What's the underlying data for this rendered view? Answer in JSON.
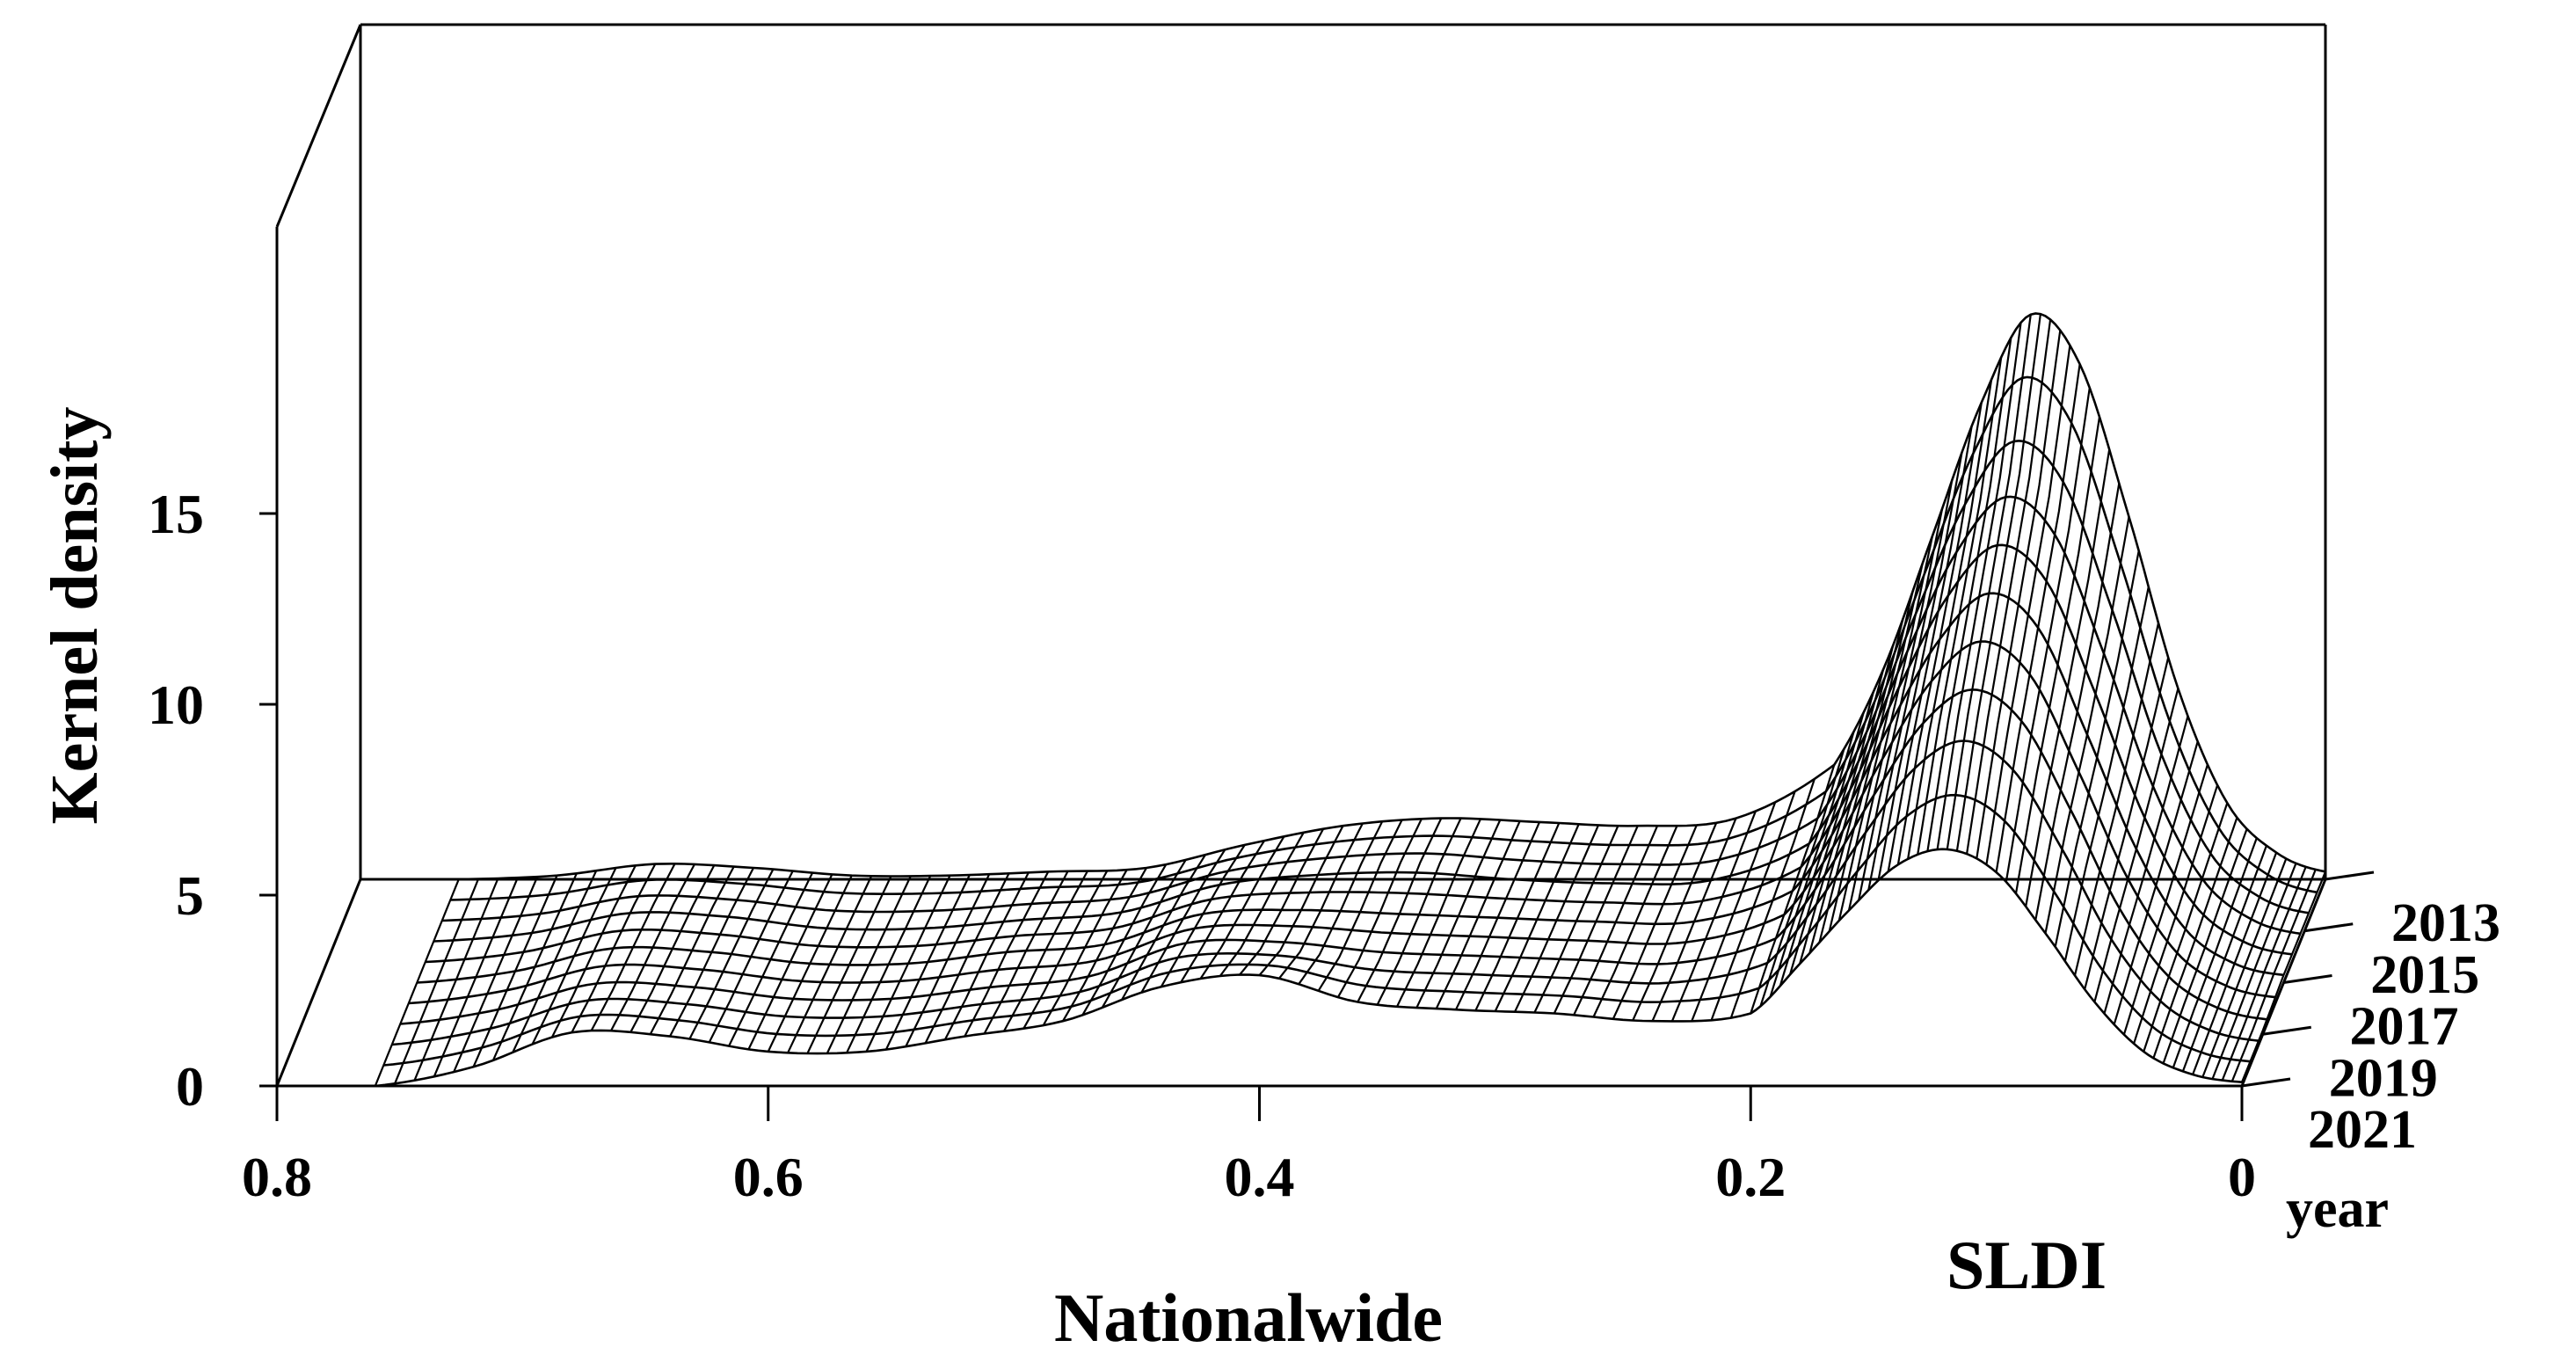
{
  "chart_data": {
    "type": "surface",
    "xlabel": "SLDI",
    "ylabel": "Kernel density",
    "year_axis_label": "year",
    "bottom_title": "Nationalwide",
    "x_ticks": [
      "0.8",
      "0.6",
      "0.4",
      "0.2",
      "0"
    ],
    "z_ticks": [
      "0",
      "5",
      "10",
      "15"
    ],
    "year_ticks": [
      "2013",
      "2015",
      "2017",
      "2019",
      "2021"
    ],
    "xlim": [
      0.8,
      0
    ],
    "zlim": [
      0,
      15
    ],
    "grid": false,
    "x": [
      0.76,
      0.72,
      0.68,
      0.64,
      0.6,
      0.56,
      0.52,
      0.48,
      0.44,
      0.4,
      0.36,
      0.32,
      0.28,
      0.24,
      0.2,
      0.18,
      0.16,
      0.14,
      0.12,
      0.1,
      0.08,
      0.06,
      0.04,
      0.02,
      0.0
    ],
    "series": [
      {
        "name": "2013",
        "values": [
          0.0,
          0.1,
          0.4,
          0.3,
          0.1,
          0.1,
          0.2,
          0.3,
          0.9,
          1.4,
          1.6,
          1.5,
          1.4,
          1.6,
          3.0,
          5.5,
          9.0,
          12.5,
          14.8,
          13.5,
          9.5,
          5.0,
          2.0,
          0.7,
          0.2
        ]
      },
      {
        "name": "2015",
        "values": [
          0.0,
          0.2,
          0.7,
          0.6,
          0.3,
          0.3,
          0.5,
          0.7,
          1.4,
          1.7,
          1.8,
          1.6,
          1.5,
          1.6,
          2.6,
          4.8,
          7.8,
          10.5,
          12.0,
          11.0,
          7.8,
          4.2,
          1.7,
          0.6,
          0.2
        ]
      },
      {
        "name": "2017",
        "values": [
          0.0,
          0.3,
          0.9,
          0.8,
          0.5,
          0.5,
          0.8,
          1.0,
          1.8,
          1.9,
          1.8,
          1.7,
          1.6,
          1.6,
          2.4,
          4.3,
          6.8,
          9.0,
          10.2,
          9.3,
          6.5,
          3.5,
          1.4,
          0.5,
          0.2
        ]
      },
      {
        "name": "2019",
        "values": [
          0.0,
          0.4,
          1.1,
          1.0,
          0.7,
          0.7,
          1.0,
          1.3,
          2.2,
          2.2,
          1.9,
          1.8,
          1.7,
          1.6,
          2.2,
          3.8,
          5.8,
          7.6,
          8.4,
          7.6,
          5.4,
          2.9,
          1.2,
          0.4,
          0.1
        ]
      },
      {
        "name": "2021",
        "values": [
          0.0,
          0.5,
          1.4,
          1.3,
          0.9,
          0.9,
          1.3,
          1.7,
          2.6,
          2.9,
          2.2,
          2.0,
          1.9,
          1.7,
          1.9,
          3.2,
          4.6,
          5.8,
          6.2,
          5.6,
          4.0,
          2.2,
          0.9,
          0.3,
          0.1
        ]
      }
    ]
  }
}
